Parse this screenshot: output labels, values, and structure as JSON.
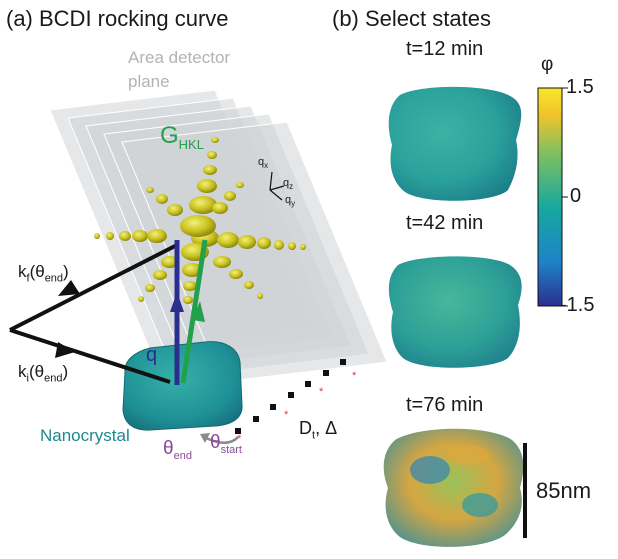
{
  "panel_a": {
    "title": "(a) BCDI rocking curve",
    "detector_label_line1": "Area detector",
    "detector_label_line2": "plane",
    "g_label_main": "G",
    "g_label_sub": "HKL",
    "q_label": "q",
    "qx": "q",
    "qx_sub": "x",
    "qz": "q",
    "qz_sub": "z",
    "qy": "q",
    "qy_sub": "y",
    "kf_main": "k",
    "kf_sub": "f",
    "kf_arg": "(θ",
    "kf_arg_sub": "end",
    "kf_close": ")",
    "ki_main": "k",
    "ki_sub": "i",
    "ki_arg": "(θ",
    "ki_arg_sub": "end",
    "ki_close": ")",
    "nanocrystal": "Nanocrystal",
    "theta_end": "θ",
    "theta_end_sub": "end",
    "theta_start": "θ",
    "theta_start_sub": "start",
    "dt_main": "D",
    "dt_sub": "t",
    "dt_rest": ", Δ"
  },
  "panel_b": {
    "title": "(b) Select states",
    "states": [
      "t=12 min",
      "t=42 min",
      "t=76 min"
    ],
    "colorbar": {
      "symbol": "φ",
      "max": "1.5",
      "mid": "0",
      "min": "-1.5",
      "colors": [
        "#2b2f8f",
        "#1f82c8",
        "#16a8a0",
        "#7fc060",
        "#f2c42a",
        "#f6e82a"
      ]
    },
    "scalebar": "85nm"
  },
  "colors": {
    "beam": "#111111",
    "q_vector": "#2a2f8f",
    "g_vector": "#22a04b",
    "peaks": "#c9c21f",
    "crystal": "#1f9a8f",
    "detector": "#cfd3d6"
  }
}
